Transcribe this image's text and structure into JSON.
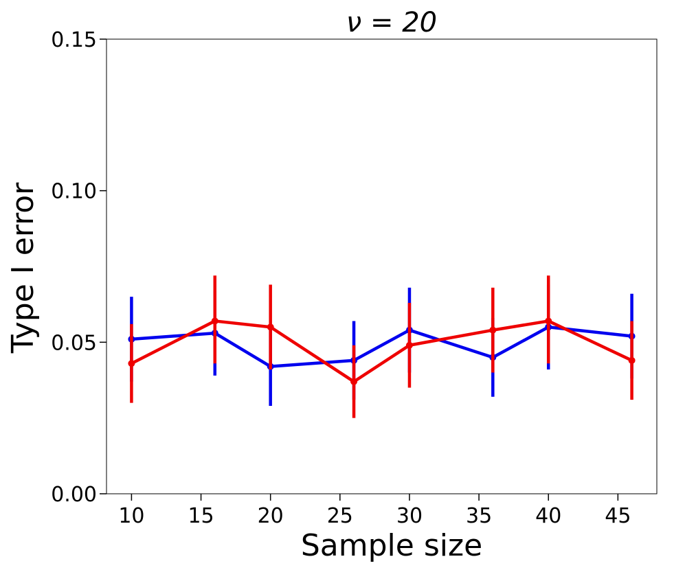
{
  "chart_data": {
    "type": "line",
    "title": "ν = 20",
    "xlabel": "Sample size",
    "ylabel": "Type I error",
    "xlim": [
      8.2,
      47.8
    ],
    "ylim": [
      0.0,
      0.15
    ],
    "xticks": [
      10,
      15,
      20,
      25,
      30,
      35,
      40,
      45
    ],
    "xtick_labels": [
      "10",
      "15",
      "20",
      "25",
      "30",
      "35",
      "40",
      "45"
    ],
    "yticks": [
      0.0,
      0.05,
      0.1,
      0.15
    ],
    "ytick_labels": [
      "0.00",
      "0.05",
      "0.10",
      "0.15"
    ],
    "grid": false,
    "legend": "none",
    "series": [
      {
        "color": "#0000ee",
        "x": [
          10,
          16,
          20,
          26,
          30,
          36,
          40,
          46
        ],
        "y": [
          0.051,
          0.053,
          0.042,
          0.044,
          0.054,
          0.045,
          0.055,
          0.052
        ],
        "err_low": [
          0.037,
          0.039,
          0.029,
          0.031,
          0.04,
          0.032,
          0.041,
          0.038
        ],
        "err_high": [
          0.065,
          0.067,
          0.055,
          0.057,
          0.068,
          0.058,
          0.069,
          0.066
        ]
      },
      {
        "color": "#ee0000",
        "x": [
          10,
          16,
          20,
          26,
          30,
          36,
          40,
          46
        ],
        "y": [
          0.043,
          0.057,
          0.055,
          0.037,
          0.049,
          0.054,
          0.057,
          0.044
        ],
        "err_low": [
          0.03,
          0.043,
          0.041,
          0.025,
          0.035,
          0.04,
          0.043,
          0.031
        ],
        "err_high": [
          0.056,
          0.072,
          0.069,
          0.049,
          0.063,
          0.068,
          0.072,
          0.057
        ]
      }
    ]
  }
}
